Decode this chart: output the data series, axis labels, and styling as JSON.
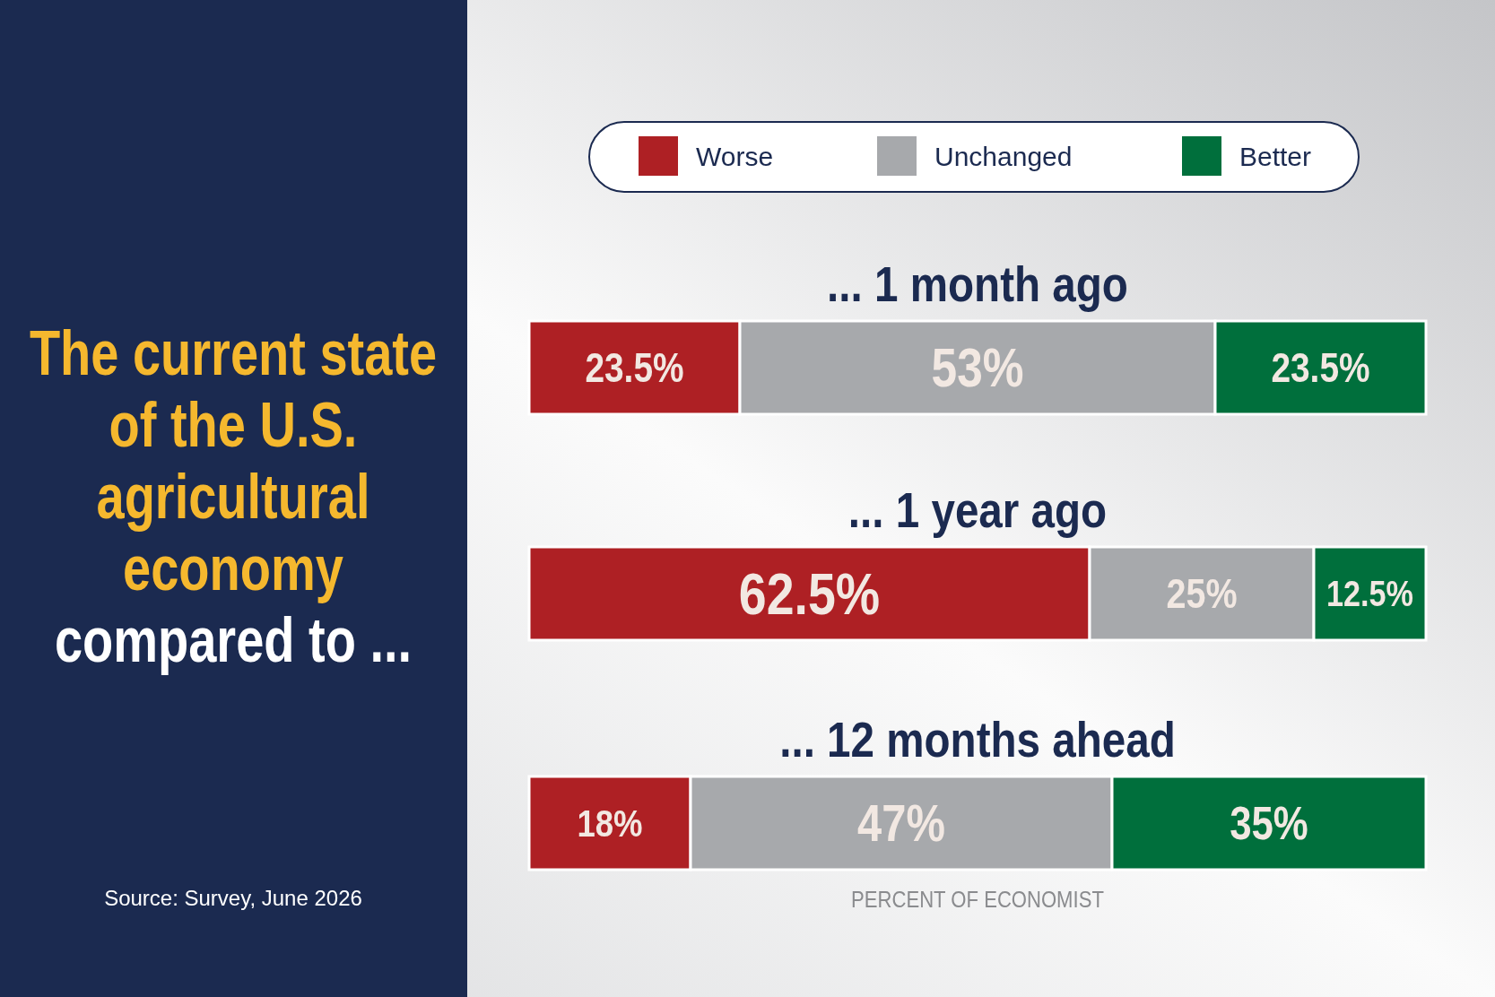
{
  "chart_data": {
    "type": "bar",
    "orientation": "horizontal",
    "stacked": true,
    "title": "The current state of the U.S. agricultural economy",
    "subtitle": "compared to ...",
    "xlabel": "PERCENT OF ECONOMIST",
    "categories": [
      "... 1 month ago",
      "... 1 year ago",
      "... 12 months ahead"
    ],
    "xlim": [
      0,
      100
    ],
    "legend": "top",
    "annotations": [
      "Source: Survey, June 2026"
    ],
    "series": [
      {
        "name": "Worse",
        "color": "#ae2024",
        "values": [
          23.5,
          62.5,
          18
        ],
        "value_labels": [
          "23.5%",
          "62.5%",
          "18%"
        ]
      },
      {
        "name": "Unchanged",
        "color": "#a7a9ac",
        "values": [
          53,
          25,
          47
        ],
        "value_labels": [
          "53%",
          "25%",
          "47%"
        ]
      },
      {
        "name": "Better",
        "color": "#006f3c",
        "values": [
          23.5,
          12.5,
          35
        ],
        "value_labels": [
          "23.5%",
          "12.5%",
          "35%"
        ]
      }
    ]
  }
}
